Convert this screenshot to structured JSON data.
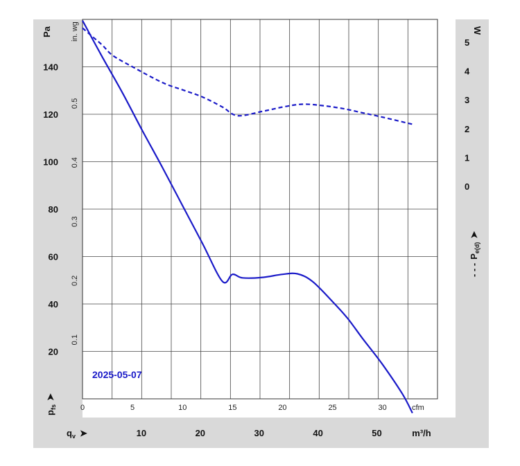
{
  "chart_data": {
    "type": "line",
    "date_label": "2025-05-07",
    "left_axis": {
      "unit": "Pa",
      "ticks": [
        "20",
        "40",
        "60",
        "80",
        "100",
        "120",
        "140"
      ],
      "tick_values": [
        20,
        40,
        60,
        80,
        100,
        120,
        140
      ],
      "range": [
        0,
        160
      ],
      "name_main": "p",
      "name_sub": "fs",
      "arrow": "➤"
    },
    "inner_left_axis": {
      "unit": "in. wg",
      "ticks": [
        "0.1",
        "0.2",
        "0.3",
        "0.4",
        "0.5"
      ],
      "tick_values": [
        0.1,
        0.2,
        0.3,
        0.4,
        0.5
      ]
    },
    "right_axis": {
      "unit": "W",
      "ticks": [
        "0",
        "1",
        "2",
        "3",
        "4",
        "5"
      ],
      "tick_values": [
        0,
        1,
        2,
        3,
        4,
        5
      ],
      "range": [
        -7.4,
        5.8
      ],
      "name_prefix": "- - -",
      "name_main": "P",
      "name_sub": "e(d)",
      "arrow": "➤"
    },
    "x_axis": {
      "unit": "cfm",
      "ticks": [
        "0",
        "5",
        "10",
        "15",
        "20",
        "25",
        "30"
      ],
      "tick_values": [
        0,
        5,
        10,
        15,
        20,
        25,
        30
      ],
      "range": [
        0,
        35.5
      ]
    },
    "x2_axis": {
      "unit": "m³/h",
      "ticks": [
        "10",
        "20",
        "30",
        "40",
        "50"
      ],
      "tick_values": [
        10,
        20,
        30,
        40,
        50
      ],
      "range": [
        0,
        60.3
      ],
      "name_main": "q",
      "name_sub": "v",
      "arrow": "➤"
    },
    "grid": true,
    "series": [
      {
        "style": "solid",
        "color": "#1a1ac8",
        "axis": "left",
        "x": [
          0,
          2,
          4,
          6,
          8,
          10,
          12,
          14,
          15,
          16,
          18,
          20,
          21.5,
          23,
          25,
          26.5,
          28,
          30,
          32,
          33
        ],
        "y": [
          159.5,
          144,
          129,
          113,
          97.5,
          81.5,
          65.5,
          49.5,
          52.5,
          51,
          51.2,
          52.5,
          52.7,
          49.5,
          41,
          34,
          25.5,
          14.5,
          2,
          -6
        ]
      },
      {
        "style": "dashed",
        "color": "#1a1ac8",
        "axis": "right",
        "x": [
          0,
          1,
          2,
          3,
          5,
          8,
          10,
          12,
          14,
          15.5,
          18,
          20,
          22,
          24,
          26,
          28,
          30,
          33
        ],
        "y": [
          5.5,
          5.2,
          4.9,
          4.55,
          4.15,
          3.6,
          3.35,
          3.1,
          2.75,
          2.45,
          2.6,
          2.75,
          2.85,
          2.8,
          2.7,
          2.55,
          2.4,
          2.15
        ]
      }
    ]
  }
}
